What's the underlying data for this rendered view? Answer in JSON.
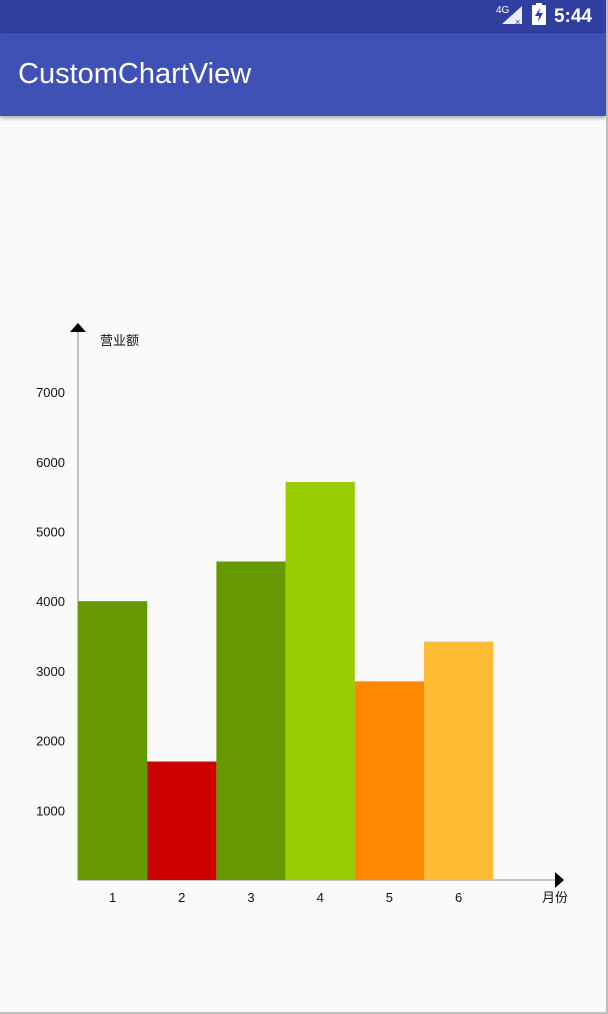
{
  "status_bar": {
    "network": "4G",
    "time": "5:44",
    "colors": {
      "background": "#303f9f"
    }
  },
  "app_bar": {
    "title": "CustomChartView",
    "colors": {
      "background": "#3f51b5"
    }
  },
  "chart_data": {
    "type": "bar",
    "ylabel": "营业额",
    "xlabel": "月份",
    "categories": [
      "1",
      "2",
      "3",
      "4",
      "5",
      "6"
    ],
    "values": [
      4000,
      1700,
      4570,
      5710,
      2850,
      3420
    ],
    "colors": [
      "#669900",
      "#cc0000",
      "#669900",
      "#99cc00",
      "#ff8800",
      "#ffbb33"
    ],
    "yticks": [
      1000,
      2000,
      3000,
      4000,
      5000,
      6000,
      7000
    ],
    "ylim": [
      0,
      7000
    ],
    "grid": false
  }
}
